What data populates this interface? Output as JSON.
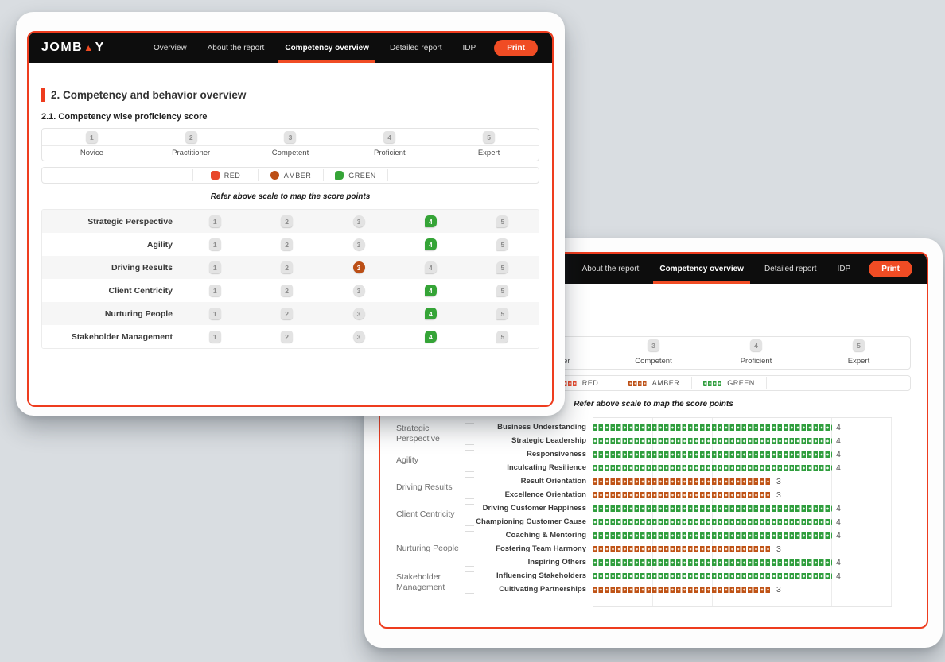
{
  "colors": {
    "accent": "#f04c24",
    "card_border": "#ee3c1e",
    "green": "#35a437",
    "amber": "#bc4f16",
    "red": "#e8472b",
    "header_bg": "#0d0d0d"
  },
  "brand": {
    "logo_pre": "JOMB",
    "logo_tri": "▲",
    "logo_post": "Y"
  },
  "nav": {
    "tabs": [
      "Overview",
      "About the report",
      "Competency overview",
      "Detailed report",
      "IDP"
    ],
    "active_tab": "Competency overview",
    "print_label": "Print"
  },
  "scale": {
    "levels": [
      {
        "num": "1",
        "label": "Novice"
      },
      {
        "num": "2",
        "label": "Practitioner"
      },
      {
        "num": "3",
        "label": "Competent"
      },
      {
        "num": "4",
        "label": "Proficient"
      },
      {
        "num": "5",
        "label": "Expert"
      }
    ]
  },
  "legend": {
    "items": [
      {
        "label": "RED",
        "color_key": "red"
      },
      {
        "label": "AMBER",
        "color_key": "amber"
      },
      {
        "label": "GREEN",
        "color_key": "green"
      }
    ]
  },
  "front_card": {
    "section_title": "2. Competency and behavior overview",
    "subsection_title": "2.1. Competency wise proficiency score",
    "note": "Refer above scale to map the score points"
  },
  "back_card": {
    "note": "Refer above scale to map the score points"
  },
  "chart_data": [
    {
      "type": "table",
      "title": "Competency wise proficiency score",
      "scale_min": 1,
      "scale_max": 5,
      "rows": [
        {
          "competency": "Strategic Perspective",
          "score": 4,
          "rating": "green"
        },
        {
          "competency": "Agility",
          "score": 4,
          "rating": "green"
        },
        {
          "competency": "Driving Results",
          "score": 3,
          "rating": "amber"
        },
        {
          "competency": "Client Centricity",
          "score": 4,
          "rating": "green"
        },
        {
          "competency": "Nurturing People",
          "score": 4,
          "rating": "green"
        },
        {
          "competency": "Stakeholder Management",
          "score": 4,
          "rating": "green"
        }
      ]
    },
    {
      "type": "bar",
      "orientation": "horizontal",
      "xlim": [
        0,
        5
      ],
      "gridlines": [
        0,
        1,
        2,
        3,
        4,
        5
      ],
      "legend_position": "top",
      "groups": [
        {
          "name": "Strategic Perspective",
          "behaviors": [
            {
              "label": "Business Understanding",
              "value": 4,
              "rating": "green"
            },
            {
              "label": "Strategic Leadership",
              "value": 4,
              "rating": "green"
            }
          ]
        },
        {
          "name": "Agility",
          "behaviors": [
            {
              "label": "Responsiveness",
              "value": 4,
              "rating": "green"
            },
            {
              "label": "Inculcating Resilience",
              "value": 4,
              "rating": "green"
            }
          ]
        },
        {
          "name": "Driving Results",
          "behaviors": [
            {
              "label": "Result Orientation",
              "value": 3,
              "rating": "amber"
            },
            {
              "label": "Excellence Orientation",
              "value": 3,
              "rating": "amber"
            }
          ]
        },
        {
          "name": "Client Centricity",
          "behaviors": [
            {
              "label": "Driving Customer Happiness",
              "value": 4,
              "rating": "green"
            },
            {
              "label": "Championing Customer Cause",
              "value": 4,
              "rating": "green"
            }
          ]
        },
        {
          "name": "Nurturing People",
          "behaviors": [
            {
              "label": "Coaching & Mentoring",
              "value": 4,
              "rating": "green"
            },
            {
              "label": "Fostering Team Harmony",
              "value": 3,
              "rating": "amber"
            },
            {
              "label": "Inspiring Others",
              "value": 4,
              "rating": "green"
            }
          ]
        },
        {
          "name": "Stakeholder Management",
          "behaviors": [
            {
              "label": "Influencing Stakeholders",
              "value": 4,
              "rating": "green"
            },
            {
              "label": "Cultivating Partnerships",
              "value": 3,
              "rating": "amber"
            }
          ]
        }
      ]
    }
  ]
}
